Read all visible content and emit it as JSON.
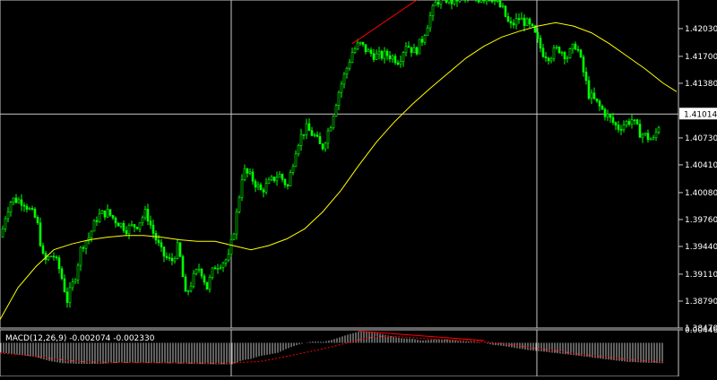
{
  "colors": {
    "background": "#000000",
    "grid": "#c8c8c8",
    "candle": "#00ff00",
    "moving_average": "#ffff00",
    "trendline": "#ff0000",
    "macd_histogram": "#c0c0c0",
    "macd_signal": "#ff0000",
    "label_text": "#ffffff",
    "price_tag_bg": "#ffffff",
    "price_tag_text": "#000000"
  },
  "chart_data": [
    {
      "type": "candlestick",
      "panel": "main",
      "ylim": [
        1.3847,
        1.4237
      ],
      "y_ticks": [
        "1.42030",
        "1.41700",
        "1.41380",
        "1.41014",
        "1.40730",
        "1.40410",
        "1.40080",
        "1.39760",
        "1.39440",
        "1.39110",
        "1.38790",
        "1.38470"
      ],
      "current_price": "1.41014",
      "close_path": [
        [
          0,
          1.3955
        ],
        [
          6,
          1.3985
        ],
        [
          12,
          1.4
        ],
        [
          25,
          1.3998
        ],
        [
          40,
          1.3975
        ],
        [
          48,
          1.3925
        ],
        [
          58,
          1.3935
        ],
        [
          66,
          1.3915
        ],
        [
          74,
          1.388
        ],
        [
          82,
          1.3905
        ],
        [
          90,
          1.3945
        ],
        [
          98,
          1.3955
        ],
        [
          108,
          1.398
        ],
        [
          118,
          1.3985
        ],
        [
          128,
          1.3975
        ],
        [
          140,
          1.3965
        ],
        [
          152,
          1.397
        ],
        [
          162,
          1.3985
        ],
        [
          170,
          1.396
        ],
        [
          180,
          1.3935
        ],
        [
          190,
          1.3925
        ],
        [
          198,
          1.3945
        ],
        [
          206,
          1.3885
        ],
        [
          214,
          1.3905
        ],
        [
          222,
          1.392
        ],
        [
          230,
          1.3895
        ],
        [
          238,
          1.392
        ],
        [
          246,
          1.3925
        ],
        [
          254,
          1.393
        ],
        [
          262,
          1.3975
        ],
        [
          270,
          1.4035
        ],
        [
          280,
          1.4025
        ],
        [
          290,
          1.401
        ],
        [
          300,
          1.402
        ],
        [
          310,
          1.403
        ],
        [
          320,
          1.4015
        ],
        [
          330,
          1.4065
        ],
        [
          340,
          1.4085
        ],
        [
          350,
          1.4075
        ],
        [
          358,
          1.406
        ],
        [
          368,
          1.409
        ],
        [
          376,
          1.4125
        ],
        [
          384,
          1.415
        ],
        [
          392,
          1.4175
        ],
        [
          400,
          1.4185
        ],
        [
          410,
          1.4175
        ],
        [
          420,
          1.417
        ],
        [
          432,
          1.4172
        ],
        [
          444,
          1.4165
        ],
        [
          452,
          1.4185
        ],
        [
          462,
          1.4175
        ],
        [
          470,
          1.419
        ],
        [
          478,
          1.4215
        ],
        [
          486,
          1.4235
        ],
        [
          494,
          1.424
        ],
        [
          502,
          1.4235
        ],
        [
          514,
          1.424
        ],
        [
          526,
          1.4236
        ],
        [
          536,
          1.424
        ],
        [
          548,
          1.424
        ],
        [
          560,
          1.4225
        ],
        [
          568,
          1.4205
        ],
        [
          578,
          1.4215
        ],
        [
          586,
          1.421
        ],
        [
          594,
          1.42
        ],
        [
          604,
          1.4175
        ],
        [
          612,
          1.417
        ],
        [
          622,
          1.418
        ],
        [
          632,
          1.417
        ],
        [
          642,
          1.4185
        ],
        [
          648,
          1.416
        ],
        [
          656,
          1.4125
        ],
        [
          664,
          1.4115
        ],
        [
          672,
          1.4105
        ],
        [
          680,
          1.4095
        ],
        [
          688,
          1.4085
        ],
        [
          696,
          1.409
        ],
        [
          704,
          1.4095
        ],
        [
          712,
          1.408
        ],
        [
          720,
          1.4075
        ],
        [
          728,
          1.407
        ],
        [
          736,
          1.4095
        ]
      ],
      "moving_average": [
        [
          0,
          1.3857
        ],
        [
          20,
          1.3895
        ],
        [
          40,
          1.392
        ],
        [
          60,
          1.394
        ],
        [
          80,
          1.3947
        ],
        [
          100,
          1.3952
        ],
        [
          120,
          1.3955
        ],
        [
          140,
          1.3957
        ],
        [
          160,
          1.3957
        ],
        [
          180,
          1.3955
        ],
        [
          200,
          1.3952
        ],
        [
          220,
          1.395
        ],
        [
          240,
          1.395
        ],
        [
          260,
          1.3945
        ],
        [
          280,
          1.394
        ],
        [
          300,
          1.3945
        ],
        [
          320,
          1.3953
        ],
        [
          340,
          1.3965
        ],
        [
          360,
          1.3985
        ],
        [
          380,
          1.401
        ],
        [
          400,
          1.404
        ],
        [
          420,
          1.4068
        ],
        [
          440,
          1.4092
        ],
        [
          460,
          1.4113
        ],
        [
          480,
          1.4132
        ],
        [
          500,
          1.415
        ],
        [
          520,
          1.4168
        ],
        [
          540,
          1.4182
        ],
        [
          560,
          1.4193
        ],
        [
          580,
          1.42
        ],
        [
          600,
          1.4206
        ],
        [
          620,
          1.421
        ],
        [
          640,
          1.4206
        ],
        [
          660,
          1.4198
        ],
        [
          680,
          1.4185
        ],
        [
          700,
          1.417
        ],
        [
          720,
          1.4155
        ],
        [
          740,
          1.4138
        ],
        [
          755,
          1.4128
        ]
      ],
      "trendline": [
        [
          393,
          1.4185
        ],
        [
          465,
          1.4237
        ]
      ]
    },
    {
      "type": "bar",
      "panel": "sub",
      "title": "MACD(12,26,9) -0.002074 -0.002330",
      "ylim": [
        -0.0115,
        0.00446
      ],
      "y_ticks": [
        "0.00446"
      ],
      "histogram": [
        [
          0,
          -0.0033
        ],
        [
          20,
          -0.004
        ],
        [
          40,
          -0.0049
        ],
        [
          55,
          -0.0062
        ],
        [
          70,
          -0.007
        ],
        [
          90,
          -0.0072
        ],
        [
          110,
          -0.0072
        ],
        [
          130,
          -0.0069
        ],
        [
          150,
          -0.0068
        ],
        [
          170,
          -0.0069
        ],
        [
          190,
          -0.007
        ],
        [
          210,
          -0.0072
        ],
        [
          230,
          -0.0073
        ],
        [
          250,
          -0.0074
        ],
        [
          260,
          -0.0073
        ],
        [
          270,
          -0.006
        ],
        [
          280,
          -0.0055
        ],
        [
          290,
          -0.0045
        ],
        [
          300,
          -0.004
        ],
        [
          310,
          -0.0034
        ],
        [
          320,
          -0.002
        ],
        [
          330,
          -0.0009
        ],
        [
          340,
          0.0
        ],
        [
          350,
          0.0005
        ],
        [
          360,
          0.0003
        ],
        [
          370,
          0.001
        ],
        [
          380,
          0.002
        ],
        [
          390,
          0.003
        ],
        [
          400,
          0.0038
        ],
        [
          405,
          0.004
        ],
        [
          410,
          0.0038
        ],
        [
          420,
          0.0034
        ],
        [
          430,
          0.0027
        ],
        [
          440,
          0.002
        ],
        [
          450,
          0.0015
        ],
        [
          460,
          0.0014
        ],
        [
          470,
          0.0008
        ],
        [
          480,
          0.001
        ],
        [
          490,
          0.0012
        ],
        [
          500,
          0.0012
        ],
        [
          510,
          0.0007
        ],
        [
          520,
          0.0005
        ],
        [
          530,
          0.0003
        ],
        [
          540,
          0.0
        ],
        [
          550,
          -0.0007
        ],
        [
          560,
          -0.001
        ],
        [
          570,
          -0.0015
        ],
        [
          580,
          -0.002
        ],
        [
          590,
          -0.0025
        ],
        [
          600,
          -0.0028
        ],
        [
          620,
          -0.0035
        ],
        [
          640,
          -0.0042
        ],
        [
          660,
          -0.005
        ],
        [
          680,
          -0.0058
        ],
        [
          700,
          -0.0065
        ],
        [
          720,
          -0.0068
        ],
        [
          740,
          -0.007
        ]
      ],
      "signal": [
        [
          0,
          -0.0035
        ],
        [
          20,
          -0.004
        ],
        [
          40,
          -0.0046
        ],
        [
          60,
          -0.0055
        ],
        [
          80,
          -0.0062
        ],
        [
          100,
          -0.0066
        ],
        [
          150,
          -0.0068
        ],
        [
          200,
          -0.0069
        ],
        [
          250,
          -0.007
        ],
        [
          290,
          -0.0064
        ],
        [
          330,
          -0.004
        ],
        [
          370,
          -0.0014
        ],
        [
          400,
          0.001
        ],
        [
          420,
          0.0022
        ],
        [
          440,
          0.0022
        ],
        [
          460,
          0.0018
        ],
        [
          480,
          0.0013
        ],
        [
          500,
          0.001
        ],
        [
          520,
          0.0008
        ],
        [
          540,
          0.0004
        ],
        [
          560,
          -0.0002
        ],
        [
          600,
          -0.002
        ],
        [
          650,
          -0.004
        ],
        [
          700,
          -0.0057
        ],
        [
          740,
          -0.0066
        ]
      ],
      "trendline": [
        [
          400,
          0.004
        ],
        [
          540,
          0.0008
        ]
      ]
    }
  ]
}
